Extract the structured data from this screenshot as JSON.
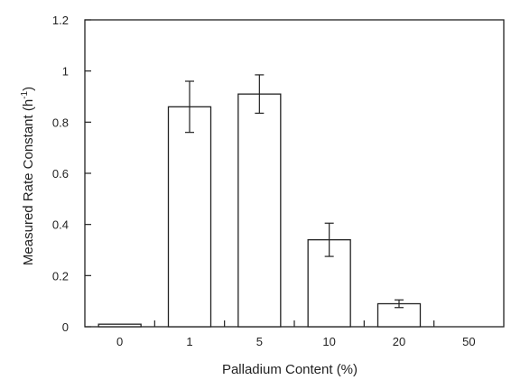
{
  "chart_data": {
    "type": "bar",
    "categories": [
      "0",
      "1",
      "5",
      "10",
      "20",
      "50"
    ],
    "values": [
      0.01,
      0.86,
      0.91,
      0.34,
      0.09,
      0
    ],
    "errors": [
      0,
      0.1,
      0.075,
      0.065,
      0.015,
      0
    ],
    "xlabel": "Palladium Content (%)",
    "ylabel": "Measured Rate Constant (h",
    "ylabel_superscript": "-1",
    "ylabel_suffix": ")",
    "ylim": [
      0,
      1.2
    ],
    "yticks": [
      "0",
      "0.2",
      "0.4",
      "0.6",
      "0.8",
      "1",
      "1.2"
    ],
    "grid": false
  }
}
